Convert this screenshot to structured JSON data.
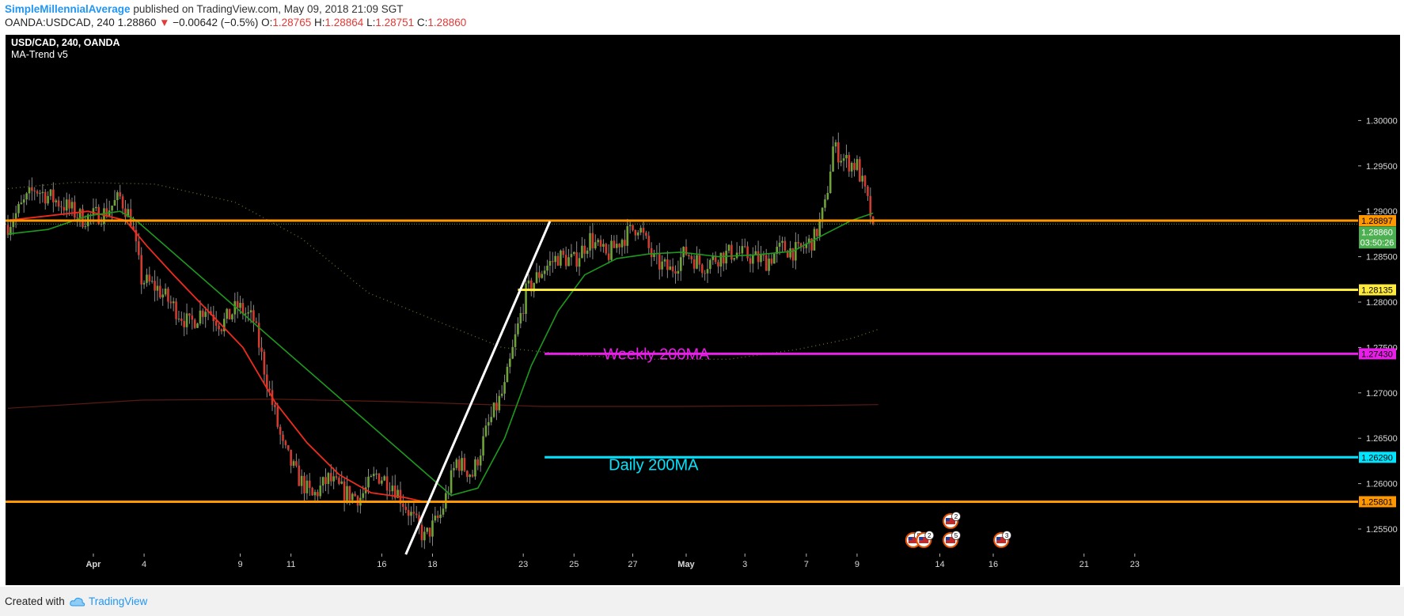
{
  "header": {
    "author": "SimpleMillennialAverage",
    "published_text": "published on TradingView.com, May 09, 2018 21:09 SGT",
    "symbol": "OANDA:USDCAD, 240",
    "last_price": "1.28860",
    "change_arrow": "▼",
    "change": "−0.00642 (−0.5%)",
    "ohlc": {
      "o_label": "O:",
      "o": "1.28765",
      "h_label": "H:",
      "h": "1.28864",
      "l_label": "L:",
      "l": "1.28751",
      "c_label": "C:",
      "c": "1.28860"
    }
  },
  "chart_data": {
    "type": "candlestick",
    "title": "USD/CAD, 240, OANDA",
    "indicator": "MA-Trend v5",
    "background": "#000000",
    "ylim": [
      1.2505,
      1.3015
    ],
    "y_ticks": [
      "1.30000",
      "1.29500",
      "1.29000",
      "1.28500",
      "1.28000",
      "1.27500",
      "1.27000",
      "1.26500",
      "1.26000",
      "1.25500"
    ],
    "x_ticks": [
      "Apr",
      "4",
      "9",
      "11",
      "16",
      "18",
      "23",
      "25",
      "27",
      "May",
      "3",
      "7",
      "9",
      "14",
      "16",
      "21",
      "23"
    ],
    "x_tick_index": [
      32,
      51,
      87,
      106,
      140,
      159,
      193,
      212,
      234,
      254,
      276,
      299,
      318,
      349,
      369,
      403,
      422
    ],
    "date_range": [
      "Mar 28, 2018",
      "May 23, 2018"
    ],
    "interval": "240 minutes",
    "horizontal_levels": [
      {
        "price": 1.28897,
        "label": "1.28897",
        "color": "#ff9800",
        "start_index": 0
      },
      {
        "price": 1.28135,
        "label": "1.28135",
        "color": "#ffeb3b",
        "start_index": 191
      },
      {
        "price": 1.2743,
        "label": "1.27430",
        "color": "#e91ee9",
        "start_index": 201
      },
      {
        "price": 1.2629,
        "label": "1.26290",
        "color": "#00e5ff",
        "start_index": 201
      },
      {
        "price": 1.25801,
        "label": "1.25801",
        "color": "#ff9800",
        "start_index": 0
      }
    ],
    "level_annotations": [
      {
        "text": "Weekly 200MA",
        "color": "#e91ee9",
        "index": 223,
        "price": 1.2737
      },
      {
        "text": "Daily 200MA",
        "color": "#00e5ff",
        "index": 225,
        "price": 1.2615
      }
    ],
    "trendline": {
      "color": "#ffffff",
      "from": {
        "index": 149,
        "price": 1.2522
      },
      "to": {
        "index": 203,
        "price": 1.2889
      }
    },
    "current_price": {
      "value": 1.2886,
      "label": "1.28860",
      "countdown": "03:50:26",
      "color": "#4caf50"
    },
    "ohlc_anchors": [
      {
        "index": 0,
        "price": 1.2885
      },
      {
        "index": 10,
        "price": 1.2925
      },
      {
        "index": 22,
        "price": 1.2905
      },
      {
        "index": 28,
        "price": 1.2892
      },
      {
        "index": 36,
        "price": 1.2898
      },
      {
        "index": 42,
        "price": 1.2915
      },
      {
        "index": 46,
        "price": 1.2892
      },
      {
        "index": 50,
        "price": 1.2825
      },
      {
        "index": 56,
        "price": 1.2815
      },
      {
        "index": 62,
        "price": 1.2795
      },
      {
        "index": 68,
        "price": 1.2775
      },
      {
        "index": 74,
        "price": 1.2795
      },
      {
        "index": 80,
        "price": 1.2775
      },
      {
        "index": 86,
        "price": 1.2795
      },
      {
        "index": 92,
        "price": 1.278
      },
      {
        "index": 98,
        "price": 1.27
      },
      {
        "index": 103,
        "price": 1.264
      },
      {
        "index": 108,
        "price": 1.261
      },
      {
        "index": 114,
        "price": 1.2585
      },
      {
        "index": 120,
        "price": 1.2605
      },
      {
        "index": 126,
        "price": 1.259
      },
      {
        "index": 132,
        "price": 1.2585
      },
      {
        "index": 138,
        "price": 1.261
      },
      {
        "index": 144,
        "price": 1.26
      },
      {
        "index": 150,
        "price": 1.257
      },
      {
        "index": 156,
        "price": 1.254
      },
      {
        "index": 162,
        "price": 1.2565
      },
      {
        "index": 168,
        "price": 1.2625
      },
      {
        "index": 174,
        "price": 1.261
      },
      {
        "index": 180,
        "price": 1.2665
      },
      {
        "index": 186,
        "price": 1.2705
      },
      {
        "index": 190,
        "price": 1.276
      },
      {
        "index": 194,
        "price": 1.281
      },
      {
        "index": 200,
        "price": 1.2835
      },
      {
        "index": 206,
        "price": 1.285
      },
      {
        "index": 212,
        "price": 1.2845
      },
      {
        "index": 218,
        "price": 1.287
      },
      {
        "index": 224,
        "price": 1.285
      },
      {
        "index": 230,
        "price": 1.287
      },
      {
        "index": 236,
        "price": 1.2885
      },
      {
        "index": 242,
        "price": 1.2845
      },
      {
        "index": 248,
        "price": 1.2835
      },
      {
        "index": 254,
        "price": 1.2855
      },
      {
        "index": 260,
        "price": 1.284
      },
      {
        "index": 266,
        "price": 1.285
      },
      {
        "index": 272,
        "price": 1.2855
      },
      {
        "index": 278,
        "price": 1.285
      },
      {
        "index": 284,
        "price": 1.2845
      },
      {
        "index": 290,
        "price": 1.286
      },
      {
        "index": 296,
        "price": 1.2855
      },
      {
        "index": 302,
        "price": 1.287
      },
      {
        "index": 306,
        "price": 1.2905
      },
      {
        "index": 309,
        "price": 1.297
      },
      {
        "index": 314,
        "price": 1.2955
      },
      {
        "index": 318,
        "price": 1.295
      },
      {
        "index": 321,
        "price": 1.292
      },
      {
        "index": 324,
        "price": 1.2886
      }
    ],
    "ma_red": [
      {
        "index": 0,
        "price": 1.289
      },
      {
        "index": 30,
        "price": 1.29
      },
      {
        "index": 44,
        "price": 1.289
      },
      {
        "index": 52,
        "price": 1.2862
      },
      {
        "index": 62,
        "price": 1.283
      },
      {
        "index": 75,
        "price": 1.279
      },
      {
        "index": 88,
        "price": 1.275
      },
      {
        "index": 100,
        "price": 1.269
      },
      {
        "index": 112,
        "price": 1.2645
      },
      {
        "index": 124,
        "price": 1.261
      },
      {
        "index": 136,
        "price": 1.259
      },
      {
        "index": 148,
        "price": 1.2585
      },
      {
        "index": 156,
        "price": 1.258
      }
    ],
    "ma_green": [
      {
        "index": 0,
        "price": 1.2875
      },
      {
        "index": 15,
        "price": 1.288
      },
      {
        "index": 30,
        "price": 1.2895
      },
      {
        "index": 42,
        "price": 1.29
      },
      {
        "index": 48,
        "price": 1.289
      },
      {
        "index": 166,
        "price": 1.2587
      },
      {
        "index": 176,
        "price": 1.2595
      },
      {
        "index": 186,
        "price": 1.265
      },
      {
        "index": 196,
        "price": 1.273
      },
      {
        "index": 206,
        "price": 1.279
      },
      {
        "index": 216,
        "price": 1.283
      },
      {
        "index": 228,
        "price": 1.2848
      },
      {
        "index": 240,
        "price": 1.2853
      },
      {
        "index": 252,
        "price": 1.2855
      },
      {
        "index": 266,
        "price": 1.285
      },
      {
        "index": 280,
        "price": 1.2852
      },
      {
        "index": 294,
        "price": 1.2856
      },
      {
        "index": 306,
        "price": 1.2875
      },
      {
        "index": 316,
        "price": 1.289
      },
      {
        "index": 324,
        "price": 1.2898
      }
    ],
    "ma_dotted_olive": [
      {
        "index": 0,
        "price": 1.2925
      },
      {
        "index": 25,
        "price": 1.2932
      },
      {
        "index": 55,
        "price": 1.293
      },
      {
        "index": 85,
        "price": 1.291
      },
      {
        "index": 110,
        "price": 1.287
      },
      {
        "index": 135,
        "price": 1.281
      },
      {
        "index": 160,
        "price": 1.278
      },
      {
        "index": 185,
        "price": 1.275
      },
      {
        "index": 210,
        "price": 1.2742
      },
      {
        "index": 240,
        "price": 1.2737
      },
      {
        "index": 270,
        "price": 1.2737
      },
      {
        "index": 296,
        "price": 1.2748
      },
      {
        "index": 316,
        "price": 1.276
      },
      {
        "index": 326,
        "price": 1.277
      }
    ],
    "ma_dark_red": [
      {
        "index": 0,
        "price": 1.2683
      },
      {
        "index": 50,
        "price": 1.2692
      },
      {
        "index": 100,
        "price": 1.2693
      },
      {
        "index": 150,
        "price": 1.269
      },
      {
        "index": 200,
        "price": 1.2685
      },
      {
        "index": 250,
        "price": 1.2685
      },
      {
        "index": 300,
        "price": 1.2686
      },
      {
        "index": 326,
        "price": 1.2687
      }
    ],
    "event_markers": [
      {
        "index": 339,
        "badge": "8"
      },
      {
        "index": 343,
        "badge": "2"
      },
      {
        "index": 353,
        "badge": "2",
        "row": "upper"
      },
      {
        "index": 353,
        "badge": "5"
      },
      {
        "index": 372,
        "badge": "3"
      }
    ]
  },
  "footer": {
    "created_with": "Created with",
    "brand": "TradingView"
  }
}
